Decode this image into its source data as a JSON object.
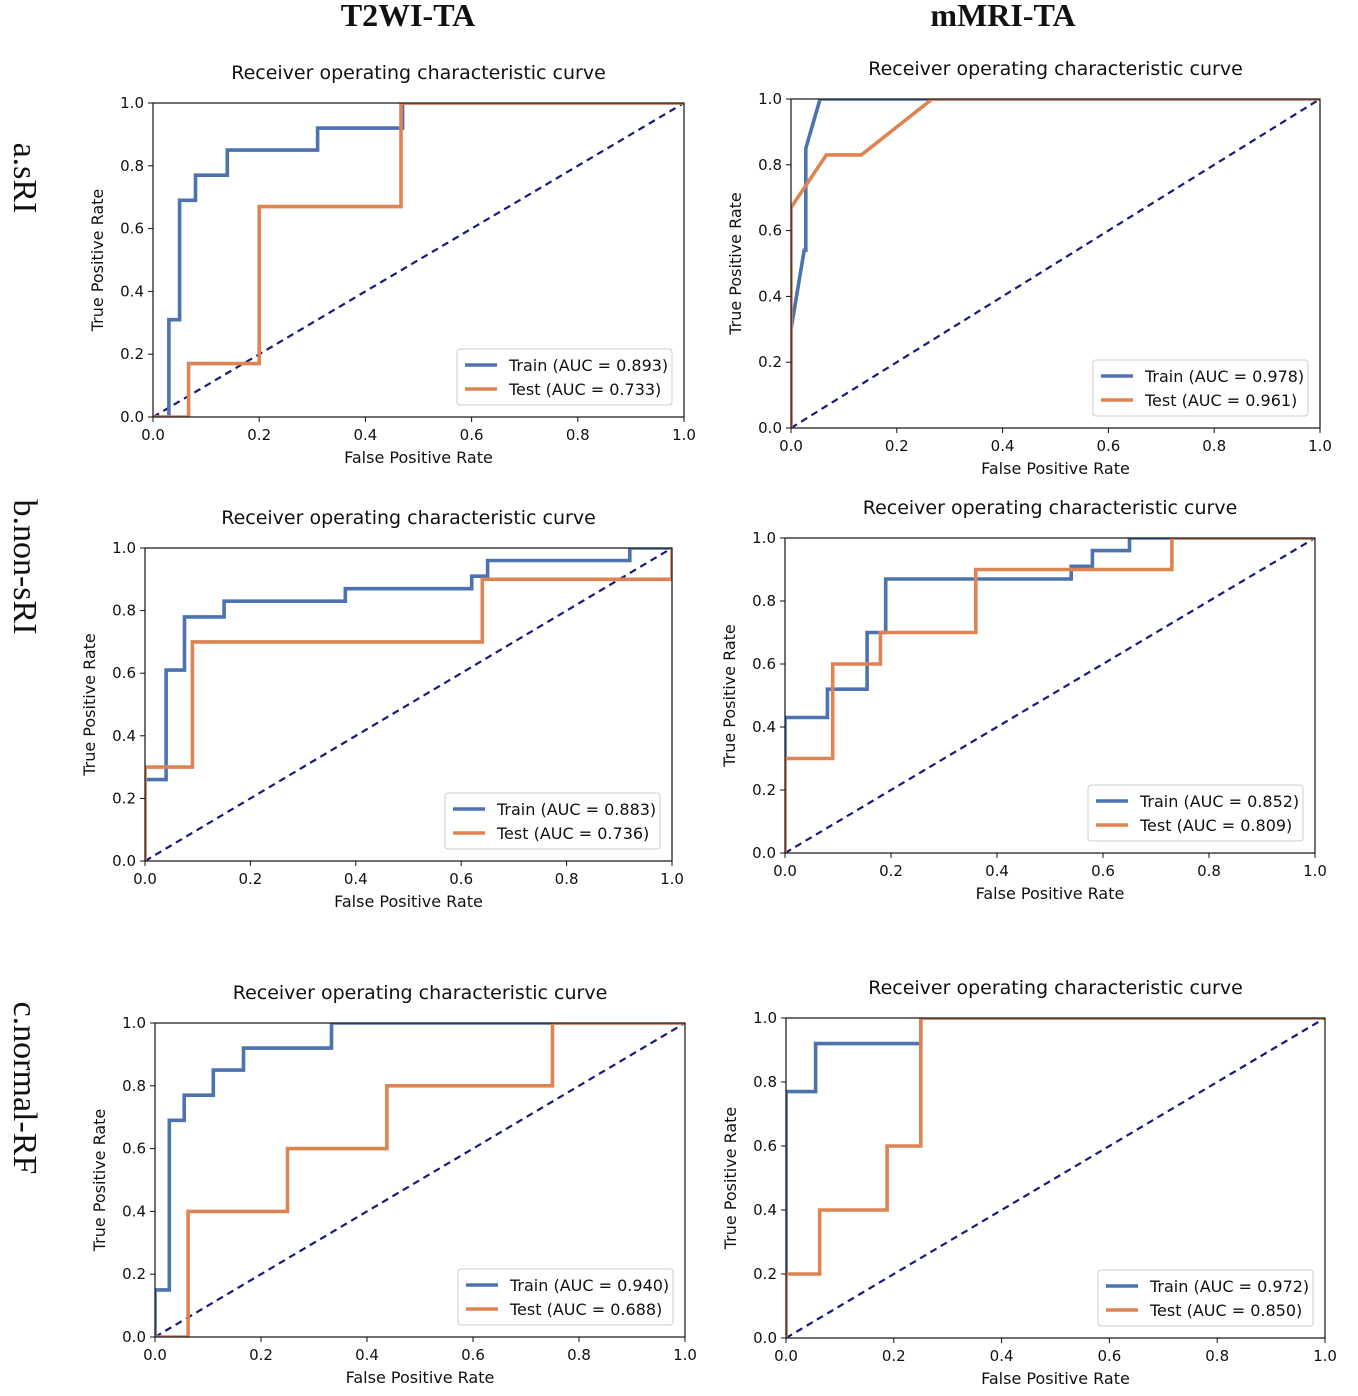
{
  "column_headers": [
    "T2WI-TA",
    "mMRI-TA"
  ],
  "row_labels": [
    "a.sRI",
    "b.non-sRI",
    "c.normal-RF"
  ],
  "colors": {
    "train": "#4c72b0",
    "test": "#dd8452",
    "chance": "#1a1a7a"
  },
  "chart_data": [
    {
      "type": "line",
      "title": "Receiver operating characteristic curve",
      "xlabel": "False Positive Rate",
      "ylabel": "True Positive Rate",
      "xlim": [
        0,
        1
      ],
      "ylim": [
        0,
        1
      ],
      "xticks": [
        "0.0",
        "0.2",
        "0.4",
        "0.6",
        "0.8",
        "1.0"
      ],
      "yticks": [
        "0.0",
        "0.2",
        "0.4",
        "0.6",
        "0.8",
        "1.0"
      ],
      "legend_position": "lower-right",
      "series": [
        {
          "name": "Train (AUC = 0.893)",
          "x": [
            0,
            0.03,
            0.03,
            0.05,
            0.05,
            0.08,
            0.08,
            0.14,
            0.14,
            0.31,
            0.31,
            0.47,
            0.47,
            1.0
          ],
          "y": [
            0,
            0,
            0.31,
            0.31,
            0.69,
            0.69,
            0.77,
            0.77,
            0.85,
            0.85,
            0.92,
            0.92,
            1.0,
            1.0
          ]
        },
        {
          "name": "Test (AUC = 0.733)",
          "x": [
            0,
            0.067,
            0.067,
            0.2,
            0.2,
            0.467,
            0.467,
            1.0
          ],
          "y": [
            0,
            0,
            0.17,
            0.17,
            0.67,
            0.67,
            1.0,
            1.0
          ]
        }
      ]
    },
    {
      "type": "line",
      "title": "Receiver operating characteristic curve",
      "xlabel": "False Positive Rate",
      "ylabel": "True Positive Rate",
      "xlim": [
        0,
        1
      ],
      "ylim": [
        0,
        1
      ],
      "xticks": [
        "0.0",
        "0.2",
        "0.4",
        "0.6",
        "0.8",
        "1.0"
      ],
      "yticks": [
        "0.0",
        "0.2",
        "0.4",
        "0.6",
        "0.8",
        "1.0"
      ],
      "legend_position": "lower-right",
      "series": [
        {
          "name": "Train (AUC = 0.978)",
          "x": [
            0,
            0,
            0.025,
            0.028,
            0.028,
            0.055,
            0.055,
            1.0
          ],
          "y": [
            0,
            0.3,
            0.54,
            0.54,
            0.85,
            1.0,
            1.0,
            1.0
          ]
        },
        {
          "name": "Test (AUC = 0.961)",
          "x": [
            0,
            0,
            0.067,
            0.133,
            0.267,
            1.0
          ],
          "y": [
            0,
            0.67,
            0.83,
            0.83,
            1.0,
            1.0
          ]
        }
      ]
    },
    {
      "type": "line",
      "title": "Receiver operating characteristic curve",
      "xlabel": "False Positive Rate",
      "ylabel": "True Positive Rate",
      "xlim": [
        0,
        1
      ],
      "ylim": [
        0,
        1
      ],
      "xticks": [
        "0.0",
        "0.2",
        "0.4",
        "0.6",
        "0.8",
        "1.0"
      ],
      "yticks": [
        "0.0",
        "0.2",
        "0.4",
        "0.6",
        "0.8",
        "1.0"
      ],
      "legend_position": "lower-right",
      "series": [
        {
          "name": "Train (AUC = 0.883)",
          "x": [
            0,
            0,
            0.04,
            0.04,
            0.075,
            0.075,
            0.15,
            0.15,
            0.38,
            0.38,
            0.62,
            0.62,
            0.65,
            0.65,
            0.92,
            0.92,
            1.0,
            1.0
          ],
          "y": [
            0,
            0.26,
            0.26,
            0.61,
            0.61,
            0.78,
            0.78,
            0.83,
            0.83,
            0.87,
            0.87,
            0.91,
            0.91,
            0.96,
            0.96,
            1.0,
            1.0,
            1.0
          ]
        },
        {
          "name": "Test (AUC = 0.736)",
          "x": [
            0,
            0,
            0.09,
            0.09,
            0.64,
            0.64,
            1.0,
            1.0
          ],
          "y": [
            0,
            0.3,
            0.3,
            0.7,
            0.7,
            0.9,
            0.9,
            1.0
          ]
        }
      ]
    },
    {
      "type": "line",
      "title": "Receiver operating characteristic curve",
      "xlabel": "False Positive Rate",
      "ylabel": "True Positive Rate",
      "xlim": [
        0,
        1
      ],
      "ylim": [
        0,
        1
      ],
      "xticks": [
        "0.0",
        "0.2",
        "0.4",
        "0.6",
        "0.8",
        "1.0"
      ],
      "yticks": [
        "0.0",
        "0.2",
        "0.4",
        "0.6",
        "0.8",
        "1.0"
      ],
      "legend_position": "lower-right",
      "series": [
        {
          "name": "Train (AUC = 0.852)",
          "x": [
            0,
            0,
            0.08,
            0.08,
            0.155,
            0.155,
            0.19,
            0.19,
            0.46,
            0.46,
            0.54,
            0.54,
            0.58,
            0.58,
            0.65,
            0.65,
            1.0
          ],
          "y": [
            0,
            0.43,
            0.43,
            0.52,
            0.52,
            0.7,
            0.7,
            0.87,
            0.87,
            0.87,
            0.87,
            0.91,
            0.91,
            0.96,
            0.96,
            1.0,
            1.0
          ]
        },
        {
          "name": "Test (AUC = 0.809)",
          "x": [
            0,
            0,
            0.09,
            0.09,
            0.18,
            0.18,
            0.36,
            0.36,
            0.73,
            0.73,
            1.0
          ],
          "y": [
            0,
            0.3,
            0.3,
            0.6,
            0.6,
            0.7,
            0.7,
            0.9,
            0.9,
            1.0,
            1.0
          ]
        }
      ]
    },
    {
      "type": "line",
      "title": "Receiver operating characteristic curve",
      "xlabel": "False Positive Rate",
      "ylabel": "True Positive Rate",
      "xlim": [
        0,
        1
      ],
      "ylim": [
        0,
        1
      ],
      "xticks": [
        "0.0",
        "0.2",
        "0.4",
        "0.6",
        "0.8",
        "1.0"
      ],
      "yticks": [
        "0.0",
        "0.2",
        "0.4",
        "0.6",
        "0.8",
        "1.0"
      ],
      "legend_position": "lower-right",
      "series": [
        {
          "name": "Train (AUC = 0.940)",
          "x": [
            0,
            0,
            0.027,
            0.027,
            0.055,
            0.055,
            0.11,
            0.11,
            0.167,
            0.167,
            0.333,
            0.333,
            1.0
          ],
          "y": [
            0,
            0.15,
            0.15,
            0.69,
            0.69,
            0.77,
            0.77,
            0.85,
            0.85,
            0.92,
            0.92,
            1.0,
            1.0
          ]
        },
        {
          "name": "Test (AUC = 0.688)",
          "x": [
            0,
            0.0625,
            0.0625,
            0.25,
            0.25,
            0.4375,
            0.4375,
            0.75,
            0.75,
            1.0
          ],
          "y": [
            0,
            0,
            0.4,
            0.4,
            0.6,
            0.6,
            0.8,
            0.8,
            1.0,
            1.0
          ]
        }
      ]
    },
    {
      "type": "line",
      "title": "Receiver operating characteristic curve",
      "xlabel": "False Positive Rate",
      "ylabel": "True Positive Rate",
      "xlim": [
        0,
        1
      ],
      "ylim": [
        0,
        1
      ],
      "xticks": [
        "0.0",
        "0.2",
        "0.4",
        "0.6",
        "0.8",
        "1.0"
      ],
      "yticks": [
        "0.0",
        "0.2",
        "0.4",
        "0.6",
        "0.8",
        "1.0"
      ],
      "legend_position": "lower-right",
      "series": [
        {
          "name": "Train (AUC = 0.972)",
          "x": [
            0,
            0,
            0.055,
            0.055,
            0.25,
            0.25,
            1.0
          ],
          "y": [
            0,
            0.77,
            0.77,
            0.92,
            0.92,
            1.0,
            1.0
          ]
        },
        {
          "name": "Test (AUC = 0.850)",
          "x": [
            0,
            0,
            0.0625,
            0.0625,
            0.1875,
            0.1875,
            0.25,
            0.25,
            1.0
          ],
          "y": [
            0,
            0.2,
            0.2,
            0.4,
            0.4,
            0.6,
            0.6,
            1.0,
            1.0
          ]
        }
      ]
    }
  ]
}
